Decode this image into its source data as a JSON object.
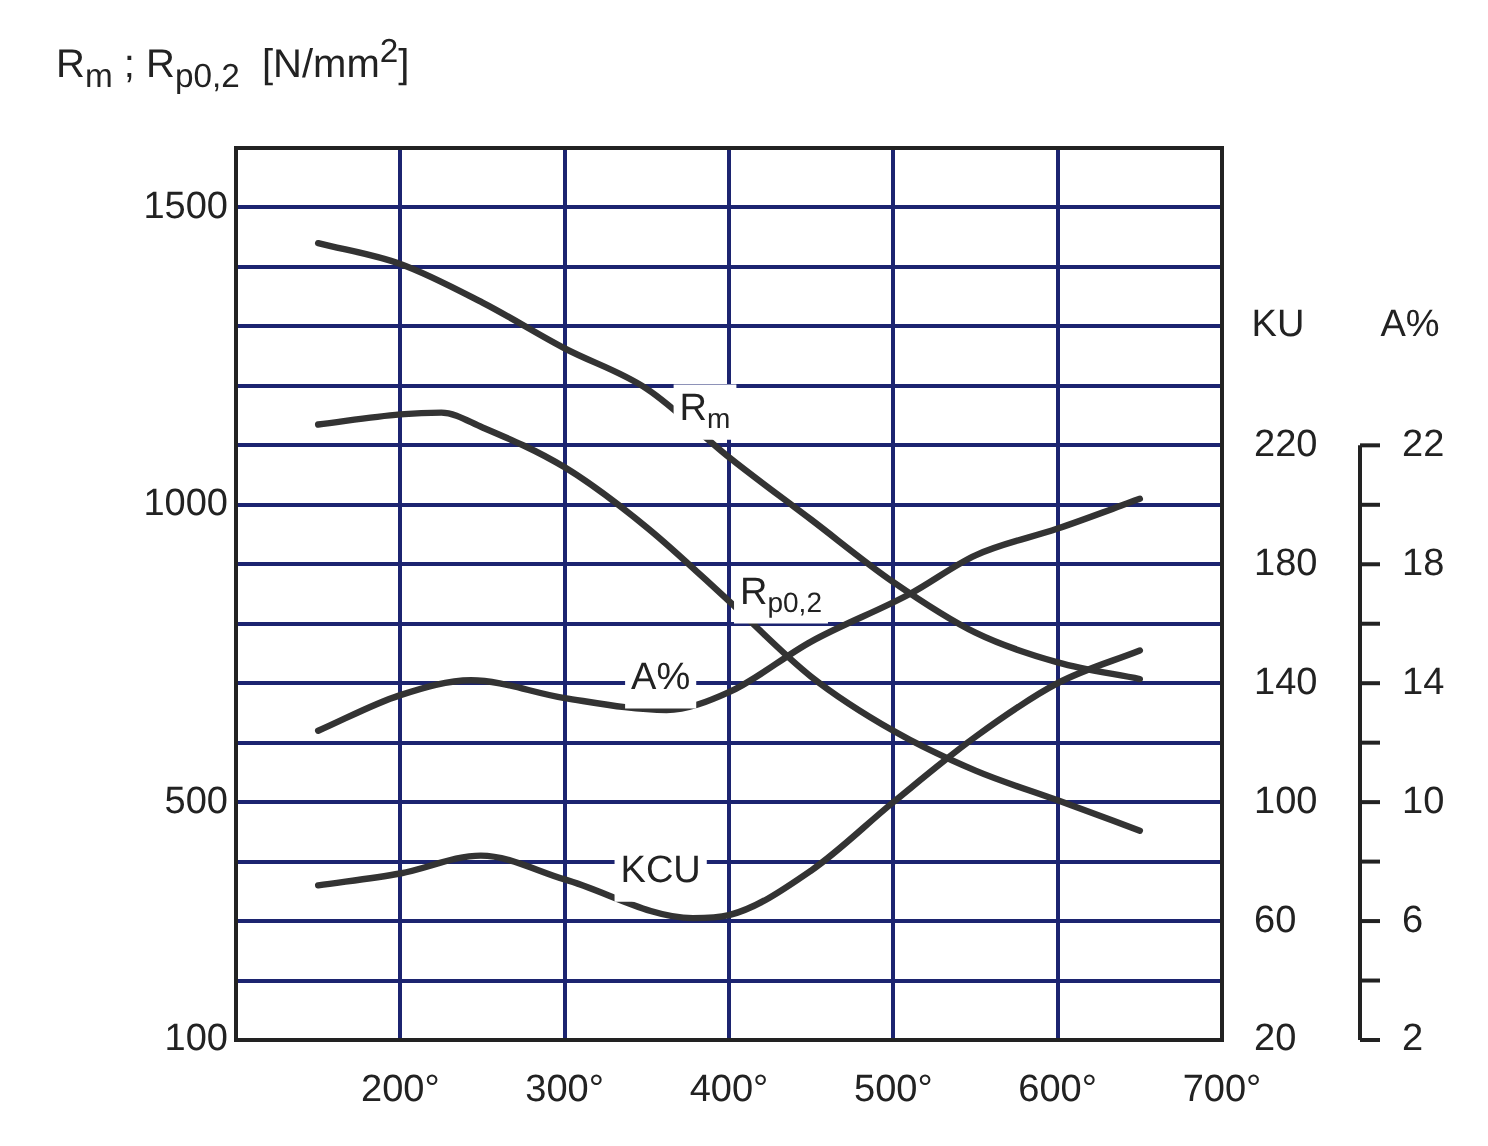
{
  "chart_data": {
    "type": "line",
    "ylabel": "R$_{m}$ ; R$_{p0,2}$  [N/mm$^{2}$]",
    "y2label": "KU",
    "y3label": "A%",
    "xlim": [
      100,
      700
    ],
    "xticks": [
      {
        "value": 200,
        "label": "200°"
      },
      {
        "value": 300,
        "label": "300°"
      },
      {
        "value": 400,
        "label": "400°"
      },
      {
        "value": 500,
        "label": "500°"
      },
      {
        "value": 600,
        "label": "600°"
      },
      {
        "value": 700,
        "label": "700°"
      }
    ],
    "ylim": [
      100,
      1600
    ],
    "yticks": [
      100,
      {
        "value": 200,
        "label": null
      },
      {
        "value": 300,
        "label": null
      },
      {
        "value": 400,
        "label": null
      },
      500,
      {
        "value": 600,
        "label": null
      },
      {
        "value": 700,
        "label": null
      },
      {
        "value": 800,
        "label": null
      },
      {
        "value": 900,
        "label": null
      },
      1000,
      {
        "value": 1100,
        "label": null
      },
      {
        "value": 1200,
        "label": null
      },
      {
        "value": 1300,
        "label": null
      },
      {
        "value": 1400,
        "label": null
      },
      1500
    ],
    "y2lim": [
      20,
      320
    ],
    "y2ticks": [
      20,
      60,
      100,
      140,
      180,
      220
    ],
    "y3lim": [
      2,
      32
    ],
    "y3ticks": [
      2,
      {
        "value": 4,
        "label": null
      },
      6,
      {
        "value": 8,
        "label": null
      },
      10,
      {
        "value": 12,
        "label": null
      },
      14,
      {
        "value": 16,
        "label": null
      },
      18,
      {
        "value": 20,
        "label": null
      },
      22
    ],
    "grid": true,
    "series": [
      {
        "name": "R$_{m}$",
        "color": "#333333",
        "x": [
          150,
          200,
          250,
          300,
          350,
          400,
          450,
          500,
          550,
          600,
          650
        ],
        "values": [
          1440,
          1405,
          1340,
          1263,
          1195,
          1080,
          975,
          870,
          785,
          735,
          707
        ]
      },
      {
        "name": "R$_{p0,2}$",
        "color": "#333333",
        "x": [
          150,
          200,
          225,
          250,
          300,
          350,
          400,
          450,
          500,
          550,
          600,
          650
        ],
        "values": [
          1135,
          1152,
          1155,
          1130,
          1063,
          962,
          838,
          711,
          620,
          553,
          503,
          452
        ]
      },
      {
        "name": "A%",
        "color": "#333333",
        "axis": "y3",
        "x": [
          150,
          200,
          243,
          300,
          362,
          400,
          450,
          510,
          550,
          600,
          650
        ],
        "values": [
          12.4,
          13.6,
          14.1,
          13.5,
          13.1,
          13.7,
          15.4,
          17.0,
          18.3,
          19.2,
          20.2
        ]
      },
      {
        "name": "KCU",
        "color": "#333333",
        "axis": "y2",
        "x": [
          150,
          200,
          249,
          300,
          378,
          400,
          450,
          500,
          550,
          600,
          650
        ],
        "values": [
          72,
          76,
          82,
          74,
          61,
          62,
          77,
          100,
          122,
          140,
          151
        ]
      }
    ]
  }
}
